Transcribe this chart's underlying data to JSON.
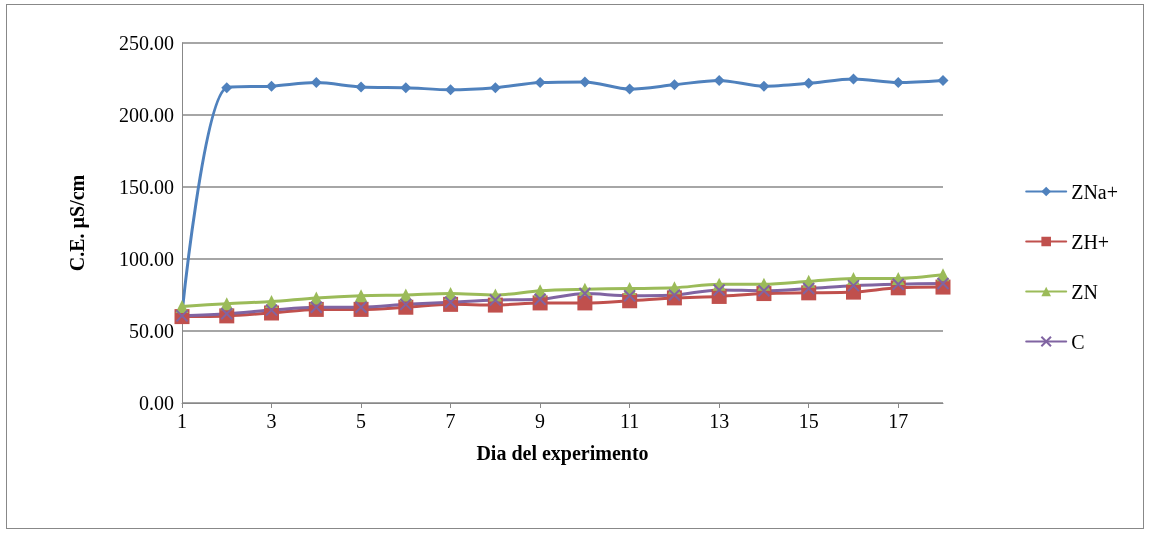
{
  "chart_data": {
    "type": "line",
    "xlabel": "Dia del experimento",
    "ylabel": "C.E. µS/cm",
    "x": [
      1,
      2,
      3,
      4,
      5,
      6,
      7,
      8,
      9,
      10,
      11,
      12,
      13,
      14,
      15,
      16,
      17,
      18
    ],
    "xlim": [
      1,
      18
    ],
    "xticks": [
      1,
      3,
      5,
      7,
      9,
      11,
      13,
      15,
      17
    ],
    "series": [
      {
        "name": "ZNa+",
        "color": "#4f81bd",
        "marker": "diamond",
        "values": [
          62,
          219,
          220,
          222.5,
          219.5,
          219,
          217.5,
          219,
          222.5,
          223,
          218,
          221,
          224,
          220,
          222,
          225,
          222.5,
          224
        ]
      },
      {
        "name": "ZH+",
        "color": "#c0504d",
        "marker": "square",
        "values": [
          60,
          60.5,
          62.5,
          65,
          65,
          66.5,
          68.5,
          68,
          69.5,
          69.5,
          71,
          73,
          74,
          76,
          76.5,
          77,
          80,
          80.5
        ]
      },
      {
        "name": "ZN",
        "color": "#9bbb59",
        "marker": "triangle",
        "values": [
          67,
          69,
          70.5,
          73,
          74.5,
          75,
          76,
          75,
          78,
          79,
          79.5,
          80,
          82.5,
          82.5,
          84.5,
          86.5,
          86.5,
          89
        ]
      },
      {
        "name": "C",
        "color": "#8064a2",
        "marker": "cross",
        "values": [
          60.5,
          62,
          64.5,
          66.5,
          66.5,
          68.5,
          70,
          71.5,
          72,
          76,
          74.5,
          75,
          78.5,
          78,
          79.5,
          81.5,
          82.5,
          83
        ]
      }
    ],
    "ylim": [
      0,
      250
    ],
    "yticks": [
      {
        "value": 0,
        "label": "0.00"
      },
      {
        "value": 50,
        "label": "50.00"
      },
      {
        "value": 100,
        "label": "100.00"
      },
      {
        "value": 150,
        "label": "150.00"
      },
      {
        "value": 200,
        "label": "200.00"
      },
      {
        "value": 250,
        "label": "250.00"
      }
    ],
    "grid": "y",
    "legend": "right"
  }
}
